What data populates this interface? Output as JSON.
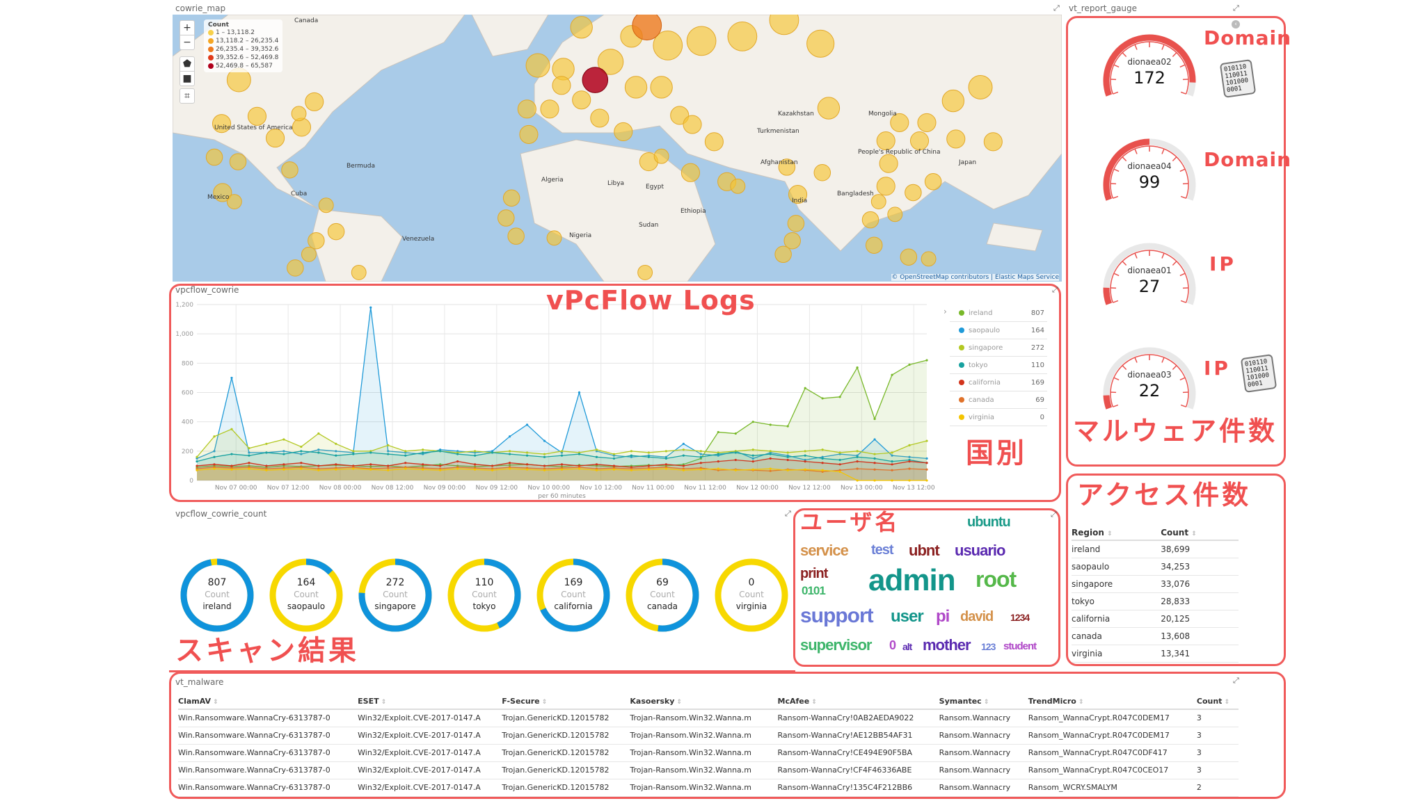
{
  "map": {
    "title": "cowrie_map",
    "zoom_in": "+",
    "zoom_out": "−",
    "legend_title": "Count",
    "legend": [
      {
        "label": "1 – 13,118.2",
        "color": "#f7d04a"
      },
      {
        "label": "13,118.2 – 26,235.4",
        "color": "#f5a623"
      },
      {
        "label": "26,235.4 – 39,352.6",
        "color": "#ee7a1e"
      },
      {
        "label": "39,352.6 – 52,469.8",
        "color": "#e03a1a"
      },
      {
        "label": "52,469.8 – 65,587",
        "color": "#b0001c"
      }
    ],
    "labels": [
      "Canada",
      "United States of America",
      "Mexico",
      "Cuba",
      "Bermuda",
      "Venezuela",
      "Kazakhstan",
      "Mongolia",
      "Algeria",
      "Libya",
      "Nigeria",
      "Egypt",
      "India",
      "Bangladesh",
      "People's Republic of China",
      "Turkmenistan",
      "Afghanistan",
      "Japan",
      "Sudan",
      "Ethiopia"
    ],
    "attribution": "© OpenStreetMap contributors | Elastic Maps Service"
  },
  "annotations": {
    "vpcflow": "vPcFlow Logs",
    "country": "国別",
    "malware_count": "マルウェア件数",
    "access_count": "アクセス件数",
    "username": "ユーザ名",
    "scan_result": "スキャン結果",
    "domain1": "Domain",
    "domain2": "Domain",
    "ip1": "IP",
    "ip2": "IP",
    "bin": "010110 110011 101000 0001"
  },
  "chart_data": {
    "type": "area",
    "title": "vpcflow_cowrie",
    "xlabel": "per 60 minutes",
    "ylabel": "",
    "ylim": [
      0,
      1200
    ],
    "yticks": [
      "0",
      "200",
      "400",
      "600",
      "800",
      "1,000",
      "1,200"
    ],
    "xticks": [
      "Nov 07 00:00",
      "Nov 07 12:00",
      "Nov 08 00:00",
      "Nov 08 12:00",
      "Nov 09 00:00",
      "Nov 09 12:00",
      "Nov 10 00:00",
      "Nov 10 12:00",
      "Nov 11 00:00",
      "Nov 11 12:00",
      "Nov 12 00:00",
      "Nov 12 12:00",
      "Nov 13 00:00",
      "Nov 13 12:00"
    ],
    "x_start": "Nov 06 15:00",
    "x_step_hours": 4,
    "series": [
      {
        "name": "ireland",
        "total": "807",
        "color": "#78b829",
        "values": [
          90,
          100,
          95,
          100,
          90,
          100,
          95,
          100,
          105,
          100,
          95,
          100,
          90,
          100,
          110,
          100,
          95,
          100,
          105,
          110,
          100,
          95,
          105,
          100,
          95,
          100,
          105,
          100,
          110,
          150,
          330,
          320,
          400,
          380,
          370,
          630,
          560,
          570,
          770,
          420,
          720,
          790,
          820
        ]
      },
      {
        "name": "saopaulo",
        "total": "164",
        "color": "#1f9ad8",
        "values": [
          150,
          200,
          700,
          190,
          190,
          200,
          180,
          210,
          200,
          190,
          1180,
          200,
          190,
          180,
          210,
          200,
          190,
          200,
          300,
          380,
          270,
          190,
          600,
          200,
          170,
          160,
          170,
          160,
          250,
          180,
          170,
          200,
          150,
          190,
          170,
          140,
          160,
          180,
          170,
          280,
          170,
          160,
          150
        ]
      },
      {
        "name": "singapore",
        "total": "272",
        "color": "#b3c822",
        "values": [
          160,
          300,
          350,
          220,
          250,
          280,
          230,
          320,
          250,
          200,
          200,
          240,
          200,
          210,
          200,
          190,
          200,
          190,
          200,
          190,
          180,
          200,
          190,
          210,
          180,
          200,
          190,
          200,
          210,
          200,
          190,
          200,
          210,
          200,
          190,
          200,
          210,
          190,
          200,
          180,
          190,
          240,
          270
        ]
      },
      {
        "name": "tokyo",
        "total": "110",
        "color": "#17a19f",
        "values": [
          130,
          160,
          180,
          170,
          190,
          180,
          200,
          190,
          170,
          180,
          190,
          180,
          170,
          190,
          200,
          180,
          170,
          190,
          180,
          170,
          160,
          170,
          180,
          160,
          150,
          170,
          160,
          150,
          170,
          160,
          180,
          190,
          170,
          180,
          160,
          170,
          150,
          140,
          160,
          150,
          130,
          140,
          120
        ]
      },
      {
        "name": "california",
        "total": "169",
        "color": "#d2341c",
        "values": [
          100,
          110,
          100,
          120,
          100,
          110,
          120,
          100,
          110,
          100,
          110,
          100,
          120,
          110,
          100,
          130,
          110,
          100,
          120,
          110,
          100,
          110,
          100,
          110,
          100,
          90,
          100,
          110,
          100,
          120,
          130,
          140,
          130,
          150,
          140,
          130,
          120,
          110,
          130,
          120,
          110,
          130,
          120
        ]
      },
      {
        "name": "canada",
        "total": "69",
        "color": "#e0722a",
        "values": [
          80,
          90,
          85,
          90,
          80,
          85,
          90,
          80,
          85,
          90,
          80,
          85,
          90,
          85,
          80,
          90,
          85,
          80,
          90,
          85,
          80,
          85,
          90,
          80,
          85,
          80,
          85,
          90,
          80,
          85,
          70,
          75,
          70,
          65,
          75,
          70,
          60,
          70,
          80,
          75,
          70,
          80,
          75
        ]
      },
      {
        "name": "virginia",
        "total": "0",
        "color": "#f4c400",
        "values": [
          70,
          80,
          75,
          80,
          70,
          75,
          80,
          70,
          75,
          80,
          75,
          70,
          80,
          75,
          70,
          80,
          75,
          70,
          80,
          75,
          70,
          75,
          80,
          70,
          75,
          70,
          75,
          80,
          70,
          75,
          80,
          70,
          75,
          80,
          70,
          75,
          70,
          60,
          0,
          0,
          0,
          0,
          0
        ]
      }
    ]
  },
  "count": {
    "title": "vpcflow_cowrie_count",
    "unit": "Count",
    "blue": "#0f93dc",
    "yellow": "#f7d800",
    "items": [
      {
        "value": "807",
        "label": "ireland",
        "share": 0.97
      },
      {
        "value": "164",
        "label": "saopaulo",
        "share": 0.13
      },
      {
        "value": "272",
        "label": "singapore",
        "share": 0.76
      },
      {
        "value": "110",
        "label": "tokyo",
        "share": 0.43
      },
      {
        "value": "169",
        "label": "california",
        "share": 0.68
      },
      {
        "value": "69",
        "label": "canada",
        "share": 0.52
      },
      {
        "value": "0",
        "label": "virginia",
        "share": 0
      }
    ]
  },
  "gauge": {
    "title": "vt_report_gauge",
    "color": "#e8514d",
    "items": [
      {
        "name": "dionaea02",
        "value": "172",
        "fill": 0.92
      },
      {
        "name": "dionaea04",
        "value": "99",
        "fill": 0.5
      },
      {
        "name": "dionaea01",
        "value": "27",
        "fill": 0.1
      },
      {
        "name": "dionaea03",
        "value": "22",
        "fill": 0.08
      }
    ]
  },
  "wordcloud": {
    "words": [
      "admin",
      "support",
      "root",
      "usuario",
      "service",
      "ubnt",
      "test",
      "ubuntu",
      "supervisor",
      "user",
      "mother",
      "david",
      "print",
      "pi",
      "0101",
      "1234",
      "student",
      "123",
      "0",
      "alt"
    ]
  },
  "region_table": {
    "headers": [
      "Region",
      "Count"
    ],
    "rows": [
      [
        "ireland",
        "38,699"
      ],
      [
        "saopaulo",
        "34,253"
      ],
      [
        "singapore",
        "33,076"
      ],
      [
        "tokyo",
        "28,833"
      ],
      [
        "california",
        "20,125"
      ],
      [
        "canada",
        "13,608"
      ],
      [
        "virginia",
        "13,341"
      ]
    ]
  },
  "malware": {
    "title": "vt_malware",
    "headers": [
      "ClamAV",
      "ESET",
      "F-Secure",
      "Kasoersky",
      "McAfee",
      "Symantec",
      "TrendMicro",
      "Count"
    ],
    "rows": [
      [
        "Win.Ransomware.WannaCry-6313787-0",
        "Win32/Exploit.CVE-2017-0147.A",
        "Trojan.GenericKD.12015782",
        "Trojan-Ransom.Win32.Wanna.m",
        "Ransom-WannaCry!0AB2AEDA9022",
        "Ransom.Wannacry",
        "Ransom_WannaCrypt.R047C0DEM17",
        "3"
      ],
      [
        "Win.Ransomware.WannaCry-6313787-0",
        "Win32/Exploit.CVE-2017-0147.A",
        "Trojan.GenericKD.12015782",
        "Trojan-Ransom.Win32.Wanna.m",
        "Ransom-WannaCry!AE12BB54AF31",
        "Ransom.Wannacry",
        "Ransom_WannaCrypt.R047C0DEM17",
        "3"
      ],
      [
        "Win.Ransomware.WannaCry-6313787-0",
        "Win32/Exploit.CVE-2017-0147.A",
        "Trojan.GenericKD.12015782",
        "Trojan-Ransom.Win32.Wanna.m",
        "Ransom-WannaCry!CE494E90F5BA",
        "Ransom.Wannacry",
        "Ransom_WannaCrypt.R047C0DF417",
        "3"
      ],
      [
        "Win.Ransomware.WannaCry-6313787-0",
        "Win32/Exploit.CVE-2017-0147.A",
        "Trojan.GenericKD.12015782",
        "Trojan-Ransom.Win32.Wanna.m",
        "Ransom-WannaCry!CF4F46336ABE",
        "Ransom.Wannacry",
        "Ransom_WannaCrypt.R047C0CEO17",
        "3"
      ],
      [
        "Win.Ransomware.WannaCry-6313787-0",
        "Win32/Exploit.CVE-2017-0147.A",
        "Trojan.GenericKD.12015782",
        "Trojan-Ransom.Win32.Wanna.m",
        "Ransom-WannaCry!135C4F212BB6",
        "Ransom.Wannacry",
        "Ransom_WCRY.SMALYM",
        "2"
      ]
    ]
  }
}
